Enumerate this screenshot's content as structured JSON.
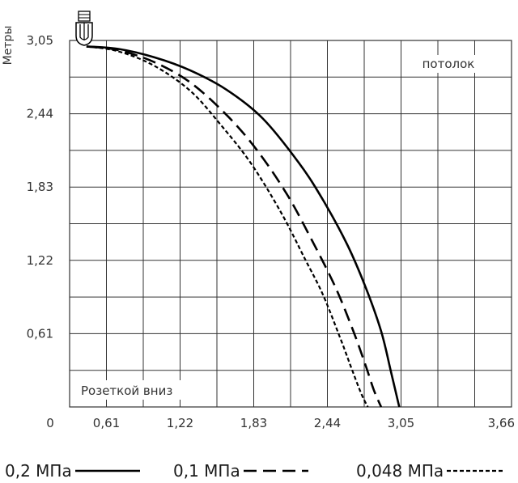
{
  "chart_data": {
    "type": "line",
    "title": "",
    "xlabel": "",
    "ylabel": "Метры",
    "xlim": [
      0,
      3.66
    ],
    "ylim": [
      0,
      3.05
    ],
    "x_ticks": [
      "0",
      "0,61",
      "1,22",
      "1,83",
      "2,44",
      "3,05",
      "3,66"
    ],
    "y_ticks": [
      "0,61",
      "1,22",
      "1,83",
      "2,44",
      "3,05"
    ],
    "grid": true,
    "legend_placement": "bottom",
    "annotations": {
      "top_right": "потолок",
      "bottom_left": "Розеткой вниз"
    },
    "icon": "sprinkler-head-icon",
    "series": [
      {
        "name": "0,2 МПа",
        "style": "solid",
        "x": [
          0.14,
          0.4,
          0.7,
          1.0,
          1.3,
          1.6,
          1.9,
          2.1,
          2.3,
          2.45,
          2.58,
          2.66,
          2.73
        ],
        "y": [
          3.0,
          2.98,
          2.91,
          2.8,
          2.64,
          2.4,
          2.03,
          1.72,
          1.35,
          1.0,
          0.63,
          0.3,
          0.0
        ]
      },
      {
        "name": "0,1 МПа",
        "style": "dashed",
        "x": [
          0.14,
          0.4,
          0.7,
          1.0,
          1.3,
          1.55,
          1.8,
          2.0,
          2.2,
          2.35,
          2.45,
          2.52,
          2.58
        ],
        "y": [
          3.0,
          2.97,
          2.87,
          2.7,
          2.43,
          2.14,
          1.77,
          1.4,
          1.0,
          0.63,
          0.35,
          0.14,
          0.0
        ]
      },
      {
        "name": "0,048 МПа",
        "style": "dotted",
        "x": [
          0.14,
          0.4,
          0.7,
          1.0,
          1.25,
          1.5,
          1.75,
          1.95,
          2.1,
          2.25,
          2.35,
          2.42,
          2.47
        ],
        "y": [
          3.0,
          2.96,
          2.84,
          2.63,
          2.35,
          2.03,
          1.62,
          1.23,
          0.93,
          0.55,
          0.28,
          0.1,
          0.0
        ]
      }
    ]
  },
  "colors": {
    "line": "#000000",
    "grid": "#333333",
    "label": "#333333"
  }
}
